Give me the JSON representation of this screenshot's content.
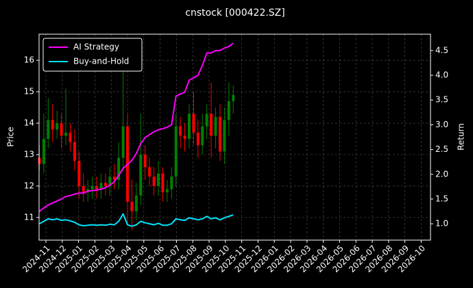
{
  "chart_data": {
    "type": "candlestick",
    "title": "cnstock [000422.SZ]",
    "y_label": "Price",
    "y2_label": "Return",
    "x": [
      -0.4,
      -0.13,
      0.14,
      0.41,
      0.68,
      0.95,
      1.22,
      1.49,
      1.76,
      2.03,
      2.3,
      2.57,
      2.84,
      3.11,
      3.38,
      3.65,
      3.92,
      4.19,
      4.46,
      4.73,
      5.0,
      5.27,
      5.54,
      5.81,
      6.08,
      6.35,
      6.62,
      6.89,
      7.16,
      7.43,
      7.7,
      7.97,
      8.24,
      8.51,
      8.78,
      9.05,
      9.32,
      9.59,
      9.86,
      10.13,
      10.4,
      10.67,
      10.94,
      11.21,
      11.48
    ],
    "open": [
      12.9,
      12.7,
      13.5,
      14.1,
      13.8,
      14.0,
      13.6,
      13.7,
      13.4,
      12.8,
      12.0,
      11.8,
      11.9,
      12.0,
      11.9,
      12.1,
      12.0,
      12.3,
      12.2,
      12.9,
      13.9,
      11.5,
      11.2,
      11.7,
      13.0,
      12.6,
      12.3,
      12.0,
      12.4,
      11.8,
      11.9,
      12.3,
      13.9,
      13.6,
      13.5,
      14.3,
      13.7,
      13.3,
      13.9,
      14.3,
      13.6,
      14.2,
      13.1,
      14.1,
      14.7
    ],
    "high": [
      13.3,
      14.3,
      14.8,
      14.6,
      14.4,
      14.3,
      15.1,
      14.0,
      13.8,
      13.1,
      12.4,
      12.2,
      12.3,
      12.3,
      12.4,
      12.4,
      12.6,
      12.7,
      13.4,
      15.9,
      14.3,
      12.2,
      12.1,
      14.3,
      13.3,
      12.9,
      12.6,
      12.8,
      12.6,
      12.2,
      12.6,
      14.3,
      14.2,
      14.0,
      14.6,
      15.0,
      14.1,
      14.3,
      14.6,
      15.3,
      14.5,
      14.6,
      14.5,
      15.3,
      15.2
    ],
    "low": [
      12.5,
      12.4,
      13.2,
      13.4,
      13.5,
      13.2,
      13.3,
      13.1,
      12.5,
      11.6,
      11.5,
      11.5,
      11.6,
      11.6,
      11.6,
      11.7,
      11.7,
      11.9,
      11.9,
      12.5,
      10.8,
      10.6,
      10.9,
      11.4,
      12.2,
      12.0,
      11.7,
      11.7,
      11.5,
      11.5,
      11.6,
      12.0,
      13.2,
      13.1,
      13.2,
      13.3,
      12.9,
      13.0,
      13.5,
      12.9,
      13.2,
      12.8,
      12.7,
      13.6,
      14.3
    ],
    "close": [
      12.7,
      13.5,
      14.1,
      13.8,
      14.0,
      13.6,
      13.7,
      13.4,
      12.8,
      12.0,
      11.8,
      11.9,
      12.0,
      11.9,
      12.1,
      12.0,
      12.3,
      12.2,
      12.9,
      13.9,
      11.5,
      11.2,
      11.7,
      13.0,
      12.6,
      12.3,
      12.0,
      12.4,
      11.8,
      11.9,
      12.3,
      13.9,
      13.6,
      13.5,
      14.3,
      13.7,
      13.3,
      13.9,
      14.3,
      13.6,
      14.2,
      13.1,
      14.1,
      14.7,
      14.9
    ],
    "up_color": "#008000",
    "down_color": "#ff0000",
    "series": [
      {
        "name": "AI Strategy",
        "color": "#ff00ff",
        "axis": "y2",
        "values": [
          1.25,
          1.32,
          1.38,
          1.42,
          1.46,
          1.5,
          1.55,
          1.57,
          1.6,
          1.62,
          1.62,
          1.66,
          1.67,
          1.68,
          1.7,
          1.73,
          1.78,
          1.85,
          1.98,
          2.12,
          2.2,
          2.28,
          2.42,
          2.62,
          2.74,
          2.8,
          2.86,
          2.9,
          2.92,
          2.95,
          3.0,
          3.58,
          3.62,
          3.66,
          3.9,
          3.95,
          4.0,
          4.2,
          4.45,
          4.45,
          4.5,
          4.5,
          4.55,
          4.58,
          4.65
        ]
      },
      {
        "name": "Buy-and-Hold",
        "color": "#00e5ff",
        "axis": "y2",
        "values": [
          1.0,
          1.05,
          1.1,
          1.08,
          1.1,
          1.07,
          1.08,
          1.06,
          1.03,
          0.98,
          0.96,
          0.97,
          0.98,
          0.97,
          0.98,
          0.97,
          0.99,
          0.98,
          1.05,
          1.2,
          0.98,
          0.95,
          0.98,
          1.05,
          1.02,
          1.0,
          0.98,
          1.01,
          0.97,
          0.97,
          1.0,
          1.1,
          1.08,
          1.07,
          1.12,
          1.1,
          1.08,
          1.1,
          1.15,
          1.1,
          1.12,
          1.08,
          1.12,
          1.15,
          1.18
        ]
      }
    ],
    "xlim": [
      -0.42,
      23.57
    ],
    "xticks": [
      {
        "value": 0,
        "label": "2024-11"
      },
      {
        "value": 1,
        "label": "2024-12"
      },
      {
        "value": 2,
        "label": "2025-01"
      },
      {
        "value": 3,
        "label": "2025-02"
      },
      {
        "value": 4,
        "label": "2025-03"
      },
      {
        "value": 5,
        "label": "2025-04"
      },
      {
        "value": 6,
        "label": "2025-05"
      },
      {
        "value": 7,
        "label": "2025-06"
      },
      {
        "value": 8,
        "label": "2025-07"
      },
      {
        "value": 9,
        "label": "2025-08"
      },
      {
        "value": 10,
        "label": "2025-09"
      },
      {
        "value": 11,
        "label": "2025-10"
      },
      {
        "value": 12,
        "label": "2025-11"
      },
      {
        "value": 13,
        "label": "2025-12"
      },
      {
        "value": 14,
        "label": "2026-01"
      },
      {
        "value": 15,
        "label": "2026-02"
      },
      {
        "value": 16,
        "label": "2026-03"
      },
      {
        "value": 17,
        "label": "2026-04"
      },
      {
        "value": 18,
        "label": "2026-05"
      },
      {
        "value": 19,
        "label": "2026-06"
      },
      {
        "value": 20,
        "label": "2026-07"
      },
      {
        "value": 21,
        "label": "2026-08"
      },
      {
        "value": 22,
        "label": "2026-09"
      },
      {
        "value": 23,
        "label": "2026-10"
      }
    ],
    "ylim": [
      10.28,
      16.83
    ],
    "yticks": [
      11,
      12,
      13,
      14,
      15,
      16
    ],
    "y2lim": [
      0.67,
      4.83
    ],
    "y2ticks": [
      {
        "value": 1,
        "label": "1.0"
      },
      1.5,
      {
        "value": 2,
        "label": "2.0"
      },
      2.5,
      {
        "value": 3,
        "label": "3.0"
      },
      3.5,
      {
        "value": 4,
        "label": "4.0"
      },
      4.5
    ],
    "grid": true,
    "legend": "upper left"
  }
}
